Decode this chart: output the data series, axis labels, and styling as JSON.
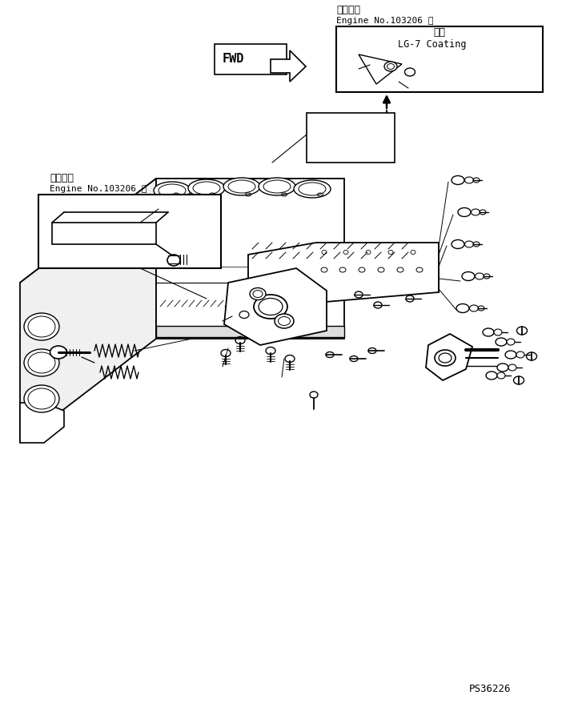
{
  "bg_color": "#ffffff",
  "lc": "#000000",
  "fig_width": 7.12,
  "fig_height": 8.83,
  "dpi": 100,
  "top_right_label1": "適用号機",
  "top_right_label2": "Engine No.103206 ～",
  "coating_label1": "塗布",
  "coating_label2": "LG-7 Coating",
  "bottom_left_label1": "適用号機",
  "bottom_left_label2": "Engine No.103206 ～",
  "bottom_right_label": "PS36226",
  "fwd_label": "FWD"
}
